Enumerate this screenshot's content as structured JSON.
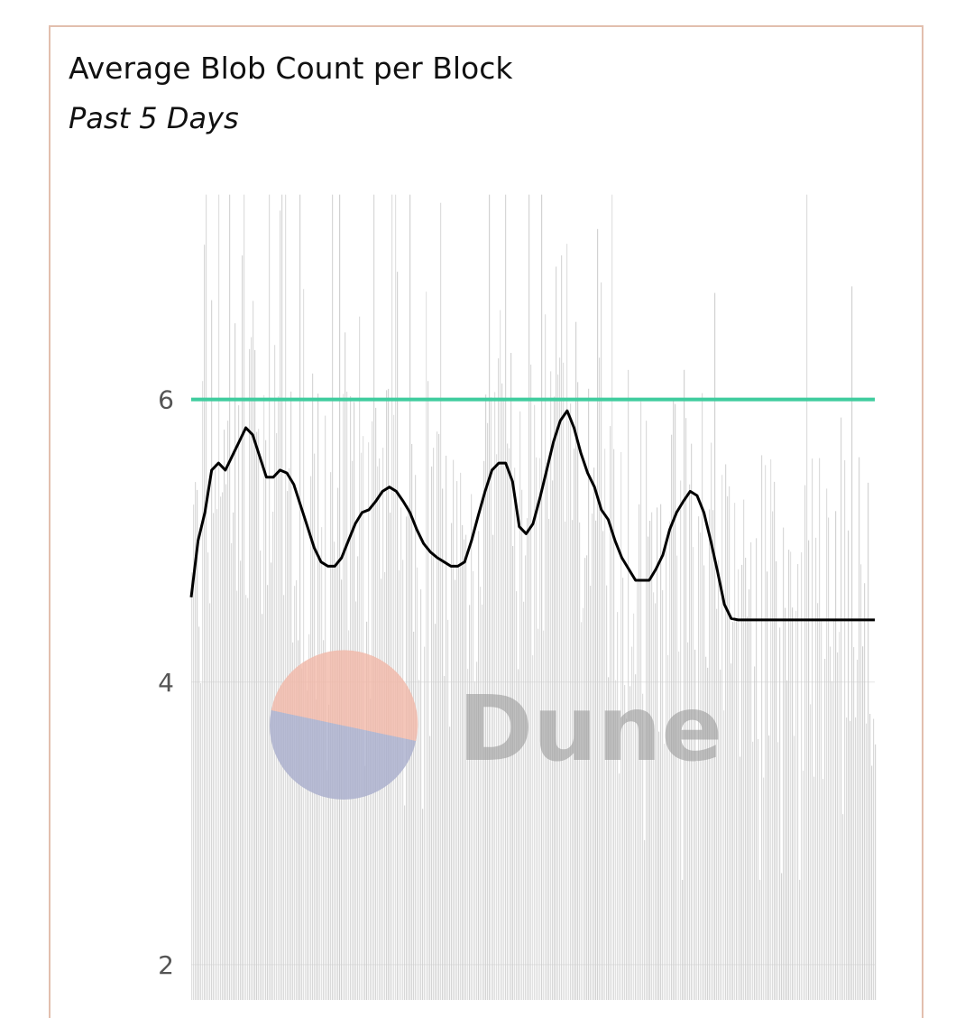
{
  "header": {
    "title": "Average Blob Count per Block",
    "subtitle": "Past 5 Days"
  },
  "watermark": {
    "brand": "Dune",
    "colors": {
      "top": "#f2b8a8",
      "bottom": "#a9aecd",
      "text": "#9a9a9a"
    }
  },
  "chart_data": {
    "type": "line",
    "title": "Average Blob Count per Block",
    "subtitle": "Past 5 Days",
    "xlabel": "",
    "ylabel": "",
    "ylim": [
      1.75,
      7.55
    ],
    "y_ticks": [
      2,
      4,
      6
    ],
    "grid": true,
    "legend": "none",
    "colors": {
      "blocks": "#cccccc",
      "average": "#000000",
      "target": "#3fcc9e",
      "grid": "#e6e6e6"
    },
    "target_value": 6,
    "x": [
      0,
      0.01,
      0.02,
      0.03,
      0.04,
      0.05,
      0.06,
      0.07,
      0.08,
      0.09,
      0.1,
      0.11,
      0.12,
      0.13,
      0.14,
      0.15,
      0.16,
      0.17,
      0.18,
      0.19,
      0.2,
      0.21,
      0.22,
      0.23,
      0.24,
      0.25,
      0.26,
      0.27,
      0.28,
      0.29,
      0.3,
      0.31,
      0.32,
      0.33,
      0.34,
      0.35,
      0.36,
      0.37,
      0.38,
      0.39,
      0.4,
      0.41,
      0.42,
      0.43,
      0.44,
      0.45,
      0.46,
      0.47,
      0.48,
      0.49,
      0.5,
      0.51,
      0.52,
      0.53,
      0.54,
      0.55,
      0.56,
      0.57,
      0.58,
      0.59,
      0.6,
      0.61,
      0.62,
      0.63,
      0.64,
      0.65,
      0.66,
      0.67,
      0.68,
      0.69,
      0.7,
      0.71,
      0.72,
      0.73,
      0.74,
      0.75,
      0.76,
      0.77,
      0.78,
      0.79,
      0.8,
      0.81,
      0.82,
      0.83,
      0.84,
      0.85,
      0.86,
      0.87,
      0.88,
      0.89,
      0.9,
      0.91,
      0.92,
      0.93,
      0.94,
      0.95,
      0.96,
      0.97,
      0.98,
      0.99,
      1
    ],
    "series": [
      {
        "values": [
          4.6,
          5.0,
          5.2,
          5.5,
          5.55,
          5.5,
          5.6,
          5.7,
          5.8,
          5.75,
          5.6,
          5.45,
          5.45,
          5.5,
          5.48,
          5.4,
          5.25,
          5.1,
          4.95,
          4.85,
          4.82,
          4.82,
          4.88,
          5.0,
          5.12,
          5.2,
          5.22,
          5.28,
          5.35,
          5.38,
          5.35,
          5.28,
          5.2,
          5.08,
          4.98,
          4.92,
          4.88,
          4.85,
          4.82,
          4.82,
          4.85,
          5.0,
          5.18,
          5.35,
          5.5,
          5.55,
          5.55,
          5.42,
          5.1,
          5.05,
          5.12,
          5.3,
          5.5,
          5.7,
          5.85,
          5.92,
          5.8,
          5.62,
          5.48,
          5.38,
          5.22,
          5.15,
          5.0,
          4.88,
          4.8,
          4.72,
          4.72,
          4.72,
          4.8,
          4.9,
          5.08,
          5.2,
          5.28,
          5.35,
          5.32,
          5.2,
          5.0,
          4.78,
          4.55,
          4.45,
          4.44,
          4.44,
          4.44,
          4.44,
          4.44,
          4.44,
          4.44,
          4.44,
          4.44,
          4.44,
          4.44,
          4.44,
          4.44,
          4.44,
          4.44,
          4.44,
          4.44,
          4.44,
          4.44,
          4.44,
          4.44
        ]
      }
    ]
  }
}
